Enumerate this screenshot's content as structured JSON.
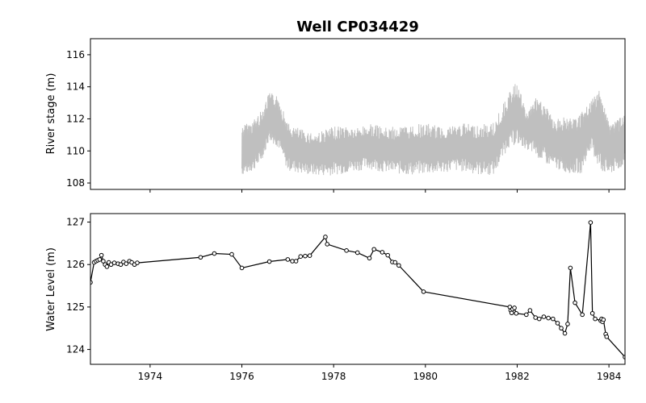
{
  "chart_data": {
    "title": "Well CP034429",
    "x_tick_labels": [
      "1974",
      "1976",
      "1978",
      "1980",
      "1982",
      "1984"
    ],
    "xlim": [
      1972.7,
      1984.35
    ],
    "panels": [
      {
        "type": "area",
        "ylabel": "River stage (m)",
        "ylim": [
          107.6,
          117.0
        ],
        "yticks": [
          108,
          110,
          112,
          114,
          116
        ],
        "line_color": "#bfbfbf",
        "note": "daily river stage record begins near 1976.0; plotted as envelope of daily min/max",
        "series": [
          {
            "x": [
              1976.0,
              1976.2,
              1976.4,
              1976.6,
              1976.8,
              1977.0,
              1977.3,
              1977.6,
              1977.9,
              1978.2,
              1978.5,
              1978.8,
              1979.1,
              1979.4,
              1979.7,
              1980.0,
              1980.3,
              1980.6,
              1980.9,
              1981.2,
              1981.5,
              1981.8,
              1982.0,
              1982.2,
              1982.4,
              1982.6,
              1982.8,
              1983.0,
              1983.2,
              1983.4,
              1983.6,
              1983.8,
              1984.0,
              1984.2,
              1984.35
            ],
            "low": [
              108.3,
              108.5,
              109.0,
              110.5,
              110.0,
              108.6,
              108.4,
              108.3,
              108.3,
              108.4,
              108.6,
              108.7,
              108.5,
              108.4,
              108.3,
              108.4,
              108.4,
              108.6,
              108.5,
              108.3,
              108.3,
              110.0,
              110.2,
              110.0,
              109.5,
              109.0,
              108.8,
              108.5,
              108.4,
              108.4,
              110.0,
              108.4,
              108.3,
              108.6,
              109.0
            ],
            "high": [
              111.8,
              112.0,
              112.6,
              113.8,
              113.6,
              111.9,
              111.5,
              111.3,
              111.6,
              111.8,
              111.6,
              111.9,
              111.6,
              111.7,
              111.8,
              111.9,
              111.7,
              111.8,
              111.9,
              111.8,
              112.0,
              113.7,
              114.6,
              112.5,
              113.5,
              113.2,
              112.0,
              112.4,
              112.2,
              112.6,
              113.2,
              114.3,
              112.0,
              112.2,
              112.4
            ]
          }
        ]
      },
      {
        "type": "line",
        "ylabel": "Water Level (m)",
        "ylim": [
          123.65,
          127.2
        ],
        "yticks": [
          124,
          125,
          126,
          127
        ],
        "line_color": "#000000",
        "series": [
          {
            "x": [
              1972.7,
              1972.78,
              1972.82,
              1972.86,
              1972.9,
              1972.94,
              1972.98,
              1973.02,
              1973.06,
              1973.1,
              1973.15,
              1973.22,
              1973.3,
              1973.36,
              1973.42,
              1973.48,
              1973.55,
              1973.6,
              1973.66,
              1973.72,
              1975.1,
              1975.4,
              1975.78,
              1976.0,
              1976.6,
              1977.0,
              1977.1,
              1977.18,
              1977.28,
              1977.38,
              1977.48,
              1977.82,
              1977.86,
              1978.28,
              1978.52,
              1978.78,
              1978.88,
              1979.06,
              1979.18,
              1979.28,
              1979.34,
              1979.42,
              1979.96,
              1981.84,
              1981.86,
              1981.88,
              1981.9,
              1981.94,
              1981.98,
              1982.2,
              1982.28,
              1982.4,
              1982.48,
              1982.58,
              1982.68,
              1982.78,
              1982.88,
              1982.96,
              1983.04,
              1983.1,
              1983.16,
              1983.26,
              1983.42,
              1983.6,
              1983.64,
              1983.7,
              1983.82,
              1983.84,
              1983.86,
              1983.88,
              1983.93,
              1983.95,
              1984.35
            ],
            "y": [
              125.58,
              126.05,
              126.08,
              126.1,
              126.12,
              126.22,
              126.08,
              126.0,
              125.95,
              126.05,
              126.0,
              126.04,
              126.02,
              126.0,
              126.06,
              126.02,
              126.08,
              126.05,
              126.0,
              126.04,
              126.17,
              126.26,
              126.24,
              125.92,
              126.07,
              126.12,
              126.08,
              126.08,
              126.19,
              126.2,
              126.21,
              126.65,
              126.48,
              126.33,
              126.28,
              126.15,
              126.36,
              126.29,
              126.22,
              126.06,
              126.05,
              125.98,
              125.36,
              125.0,
              124.92,
              124.86,
              124.95,
              124.98,
              124.85,
              124.82,
              124.92,
              124.75,
              124.72,
              124.77,
              124.74,
              124.72,
              124.62,
              124.5,
              124.38,
              124.6,
              125.92,
              125.1,
              124.82,
              126.99,
              124.85,
              124.72,
              124.68,
              124.72,
              124.65,
              124.7,
              124.36,
              124.3,
              123.82
            ]
          }
        ]
      }
    ]
  }
}
